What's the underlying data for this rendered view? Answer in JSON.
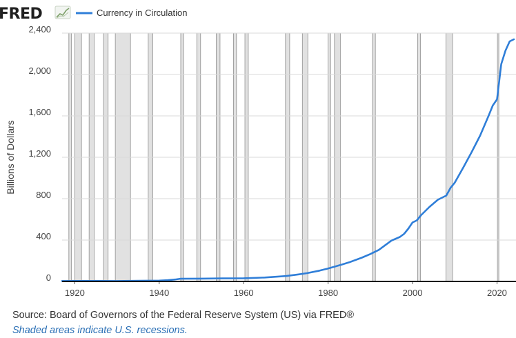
{
  "logo": {
    "text": "FRED"
  },
  "colors": {
    "line": "#2f7ed8",
    "recession": "#e1e1e1",
    "grid": "#d9d9d9"
  },
  "footer": {
    "source": "Source: Board of Governors of the Federal Reserve System (US) via FRED®",
    "note": "Shaded areas indicate U.S. recessions."
  },
  "chart_data": {
    "type": "line",
    "title": "",
    "xlabel": "",
    "ylabel": "Billions of Dollars",
    "xlim": [
      1917,
      2024.5
    ],
    "ylim": [
      0,
      2400
    ],
    "x_ticks": [
      1920,
      1940,
      1960,
      1980,
      2000,
      2020
    ],
    "y_ticks": [
      0,
      400,
      800,
      1200,
      1600,
      2000,
      2400
    ],
    "y_tick_labels": [
      "0",
      "400",
      "800",
      "1,200",
      "1,600",
      "2,000",
      "2,400"
    ],
    "grid": "horizontal",
    "legend": "top-left",
    "series": [
      {
        "name": "Currency in Circulation",
        "color": "#2f7ed8",
        "x": [
          1917,
          1920,
          1925,
          1930,
          1935,
          1940,
          1942,
          1944,
          1945,
          1950,
          1955,
          1960,
          1965,
          1970,
          1973,
          1975,
          1978,
          1980,
          1983,
          1985,
          1988,
          1990,
          1992,
          1994,
          1995,
          1997,
          1998,
          1999,
          2000,
          2001,
          2002,
          2004,
          2006,
          2007,
          2008,
          2009,
          2010,
          2012,
          2014,
          2016,
          2018,
          2019,
          2020,
          2021,
          2022,
          2023,
          2024
        ],
        "y": [
          4,
          5,
          5,
          4,
          6,
          8,
          12,
          20,
          26,
          27,
          29,
          31,
          38,
          52,
          68,
          80,
          105,
          125,
          160,
          185,
          230,
          265,
          305,
          365,
          395,
          430,
          460,
          510,
          570,
          590,
          640,
          720,
          790,
          810,
          830,
          905,
          955,
          1100,
          1250,
          1410,
          1600,
          1700,
          1760,
          2100,
          2230,
          2320,
          2340
        ]
      }
    ],
    "recessions": [
      [
        1918.6,
        1919.2
      ],
      [
        1920.0,
        1921.6
      ],
      [
        1923.4,
        1924.6
      ],
      [
        1926.8,
        1927.9
      ],
      [
        1929.6,
        1933.2
      ],
      [
        1937.4,
        1938.5
      ],
      [
        1945.1,
        1945.8
      ],
      [
        1948.9,
        1949.8
      ],
      [
        1953.5,
        1954.4
      ],
      [
        1957.6,
        1958.3
      ],
      [
        1960.3,
        1961.1
      ],
      [
        1969.9,
        1970.9
      ],
      [
        1973.9,
        1975.2
      ],
      [
        1980.0,
        1980.6
      ],
      [
        1981.5,
        1982.9
      ],
      [
        1990.5,
        1991.2
      ],
      [
        2001.2,
        2001.9
      ],
      [
        2007.9,
        2009.5
      ],
      [
        2020.1,
        2020.4
      ]
    ]
  }
}
